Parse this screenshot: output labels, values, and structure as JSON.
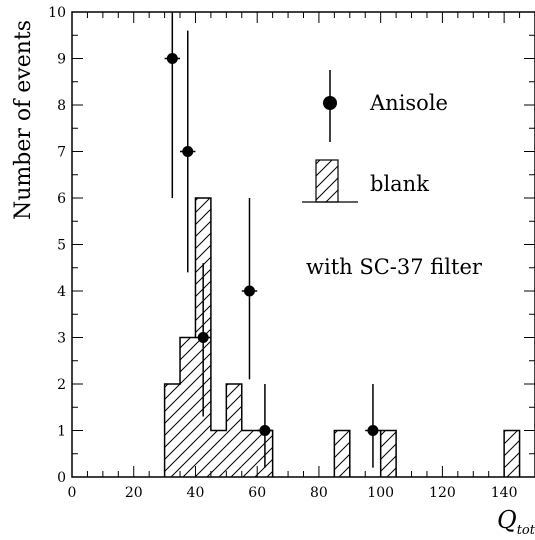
{
  "chart_data": {
    "type": "bar",
    "ylabel": "Number of events",
    "xlabel_main": "Q",
    "xlabel_sub": "tot",
    "xlim": [
      0,
      150
    ],
    "ylim": [
      0,
      10
    ],
    "x_ticks": [
      "0",
      "20",
      "40",
      "60",
      "80",
      "100",
      "120",
      "140"
    ],
    "y_ticks": [
      "0",
      "1",
      "2",
      "3",
      "4",
      "5",
      "6",
      "7",
      "8",
      "9",
      "10"
    ],
    "legend": {
      "anisole_label": "Anisole",
      "blank_label": "blank",
      "note": "with SC-37 filter"
    },
    "series": [
      {
        "name": "blank",
        "kind": "histogram",
        "bins": [
          {
            "x0": 30,
            "x1": 35,
            "count": 2
          },
          {
            "x0": 35,
            "x1": 40,
            "count": 3
          },
          {
            "x0": 40,
            "x1": 45,
            "count": 6
          },
          {
            "x0": 45,
            "x1": 50,
            "count": 1
          },
          {
            "x0": 50,
            "x1": 55,
            "count": 2
          },
          {
            "x0": 55,
            "x1": 60,
            "count": 1
          },
          {
            "x0": 60,
            "x1": 65,
            "count": 1
          },
          {
            "x0": 85,
            "x1": 90,
            "count": 1
          },
          {
            "x0": 100,
            "x1": 105,
            "count": 1
          },
          {
            "x0": 140,
            "x1": 145,
            "count": 1
          }
        ]
      },
      {
        "name": "Anisole",
        "kind": "points",
        "points": [
          {
            "x": 32.5,
            "y": 9,
            "err_lo": 6.0,
            "err_hi": 10.0
          },
          {
            "x": 37.5,
            "y": 7,
            "err_lo": 4.4,
            "err_hi": 9.6
          },
          {
            "x": 42.5,
            "y": 3,
            "err_lo": 1.3,
            "err_hi": 4.6
          },
          {
            "x": 57.5,
            "y": 4,
            "err_lo": 2.1,
            "err_hi": 6.0
          },
          {
            "x": 62.5,
            "y": 1,
            "err_lo": 0.2,
            "err_hi": 2.0
          },
          {
            "x": 97.5,
            "y": 1,
            "err_lo": 0.2,
            "err_hi": 2.0
          }
        ]
      }
    ]
  }
}
